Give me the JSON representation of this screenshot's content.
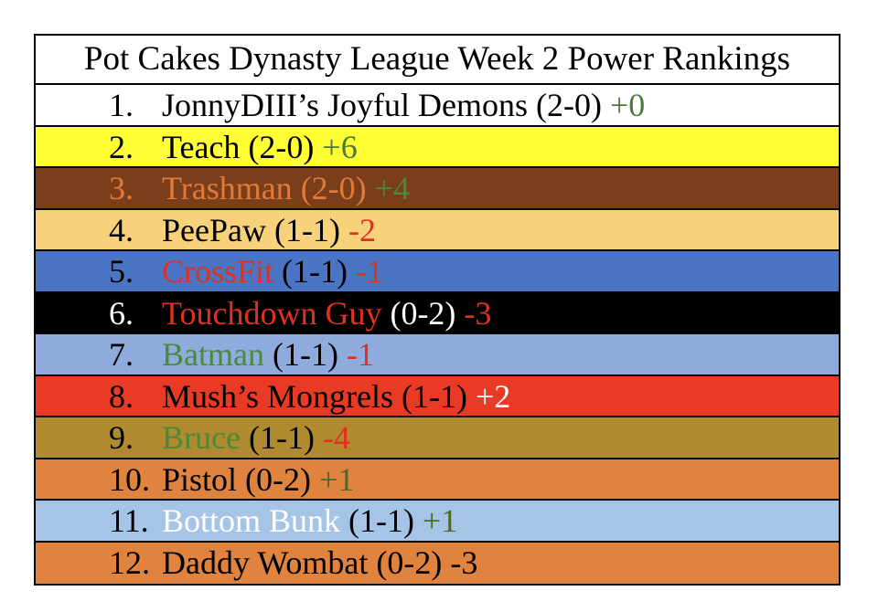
{
  "title": "Pot Cakes Dynasty League Week 2 Power Rankings",
  "rows": [
    {
      "num": "1.",
      "name": "JonnyDIII’s Joyful Demons",
      "record": " (2-0) ",
      "change": "+0",
      "bg": "#ffffff",
      "num_color": "#000000",
      "name_color": "#000000",
      "record_color": "#000000",
      "change_color": "#4a7a3a"
    },
    {
      "num": "2.",
      "name": "Teach",
      "record": " (2-0) ",
      "change": "+6",
      "bg": "#ffff33",
      "num_color": "#000000",
      "name_color": "#000000",
      "record_color": "#000000",
      "change_color": "#4a7a3a"
    },
    {
      "num": "3.",
      "name": "Trashman",
      "record": " (2-0) ",
      "change": "+4",
      "bg": "#7a3f1a",
      "num_color": "#e07a3a",
      "name_color": "#e07a3a",
      "record_color": "#e07a3a",
      "change_color": "#4a8a3a"
    },
    {
      "num": "4.",
      "name": "PeePaw",
      "record": " (1-1) ",
      "change": "-2",
      "bg": "#f8d27a",
      "num_color": "#000000",
      "name_color": "#000000",
      "record_color": "#000000",
      "change_color": "#e03020"
    },
    {
      "num": "5.",
      "name": "CrossFit",
      "record": " (1-1) ",
      "change": "-1",
      "bg": "#4a74c4",
      "num_color": "#000000",
      "name_color": "#e03020",
      "record_color": "#000000",
      "change_color": "#e03020"
    },
    {
      "num": "6.",
      "name": "Touchdown Guy",
      "record": " (0-2) ",
      "change": "-3",
      "bg": "#000000",
      "num_color": "#ffffff",
      "name_color": "#e03020",
      "record_color": "#ffffff",
      "change_color": "#e03020"
    },
    {
      "num": "7.",
      "name": "Batman",
      "record": " (1-1) ",
      "change": "-1",
      "bg": "#8faadc",
      "num_color": "#000000",
      "name_color": "#4a8a3a",
      "record_color": "#000000",
      "change_color": "#e03020"
    },
    {
      "num": "8.",
      "name": "Mush’s Mongrels",
      "record": " (1-1) ",
      "change": "+2",
      "bg": "#e83a24",
      "num_color": "#000000",
      "name_color": "#000000",
      "record_color": "#000000",
      "change_color": "#ffffff"
    },
    {
      "num": "9.",
      "name": "Bruce",
      "record": " (1-1) ",
      "change": "-4",
      "bg": "#b08a2e",
      "num_color": "#000000",
      "name_color": "#4a8a3a",
      "record_color": "#000000",
      "change_color": "#e03020"
    },
    {
      "num": "10.",
      "name": "Pistol",
      "record": " (0-2) ",
      "change": "+1",
      "bg": "#e0833e",
      "num_color": "#000000",
      "name_color": "#000000",
      "record_color": "#000000",
      "change_color": "#4a6a2a"
    },
    {
      "num": "11.",
      "name": "Bottom Bunk",
      "record": " (1-1) ",
      "change": "+1",
      "bg": "#a6c4e6",
      "num_color": "#000000",
      "name_color": "#ffffff",
      "record_color": "#000000",
      "change_color": "#4a6a2a"
    },
    {
      "num": "12.",
      "name": "Daddy Wombat",
      "record": " (0-2) ",
      "change": "-3",
      "bg": "#e0833e",
      "num_color": "#000000",
      "name_color": "#000000",
      "record_color": "#000000",
      "change_color": "#000000"
    }
  ]
}
